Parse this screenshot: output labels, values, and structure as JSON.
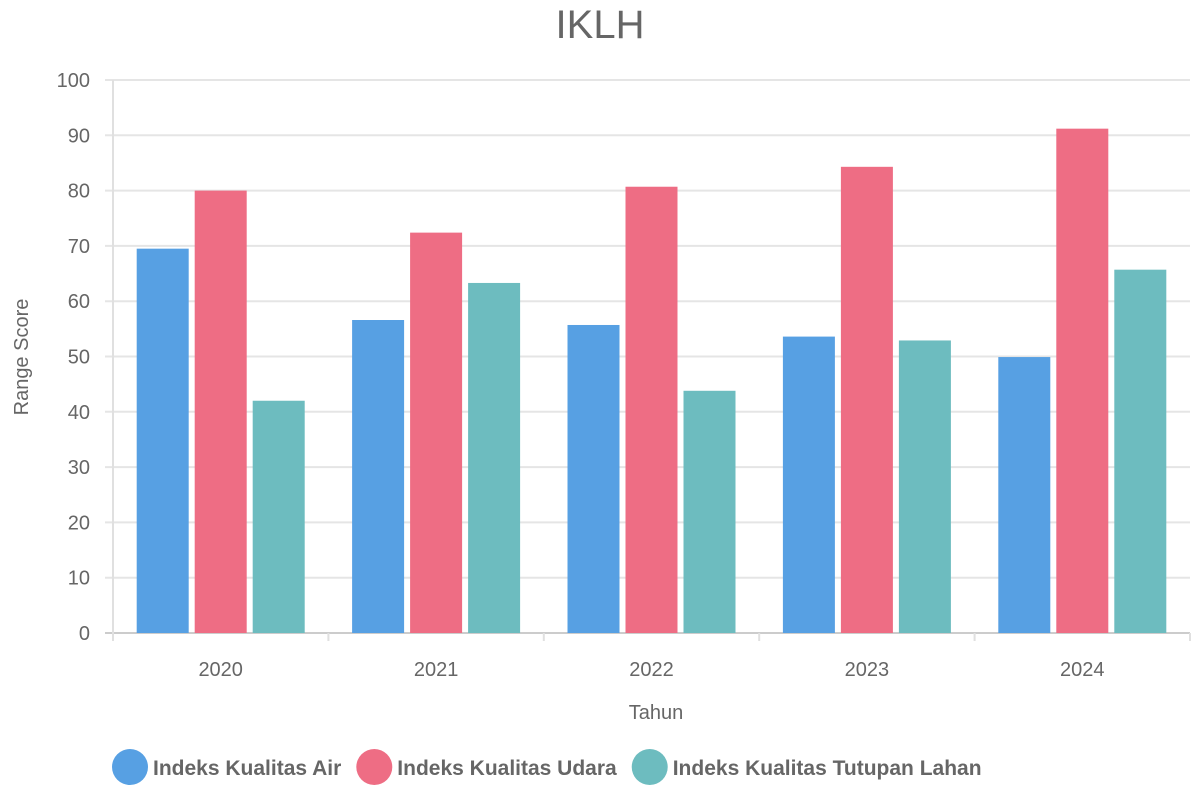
{
  "chart_data": {
    "type": "bar",
    "title": "IKLH",
    "xlabel": "Tahun",
    "ylabel": "Range Score",
    "ylim": [
      0,
      100
    ],
    "yticks": [
      0,
      10,
      20,
      30,
      40,
      50,
      60,
      70,
      80,
      90,
      100
    ],
    "grid": true,
    "legend_position": "bottom",
    "categories": [
      "2020",
      "2021",
      "2022",
      "2023",
      "2024"
    ],
    "series": [
      {
        "name": "Indeks Kualitas Air",
        "color": "#57a0e3",
        "values": [
          69.5,
          56.6,
          55.7,
          53.6,
          49.9
        ]
      },
      {
        "name": "Indeks Kualitas Udara",
        "color": "#ee6d84",
        "values": [
          80.0,
          72.4,
          80.7,
          84.3,
          91.2
        ]
      },
      {
        "name": "Indeks Kualitas Tutupan Lahan",
        "color": "#6dbcbf",
        "values": [
          42.0,
          63.3,
          43.8,
          52.9,
          65.7
        ]
      }
    ]
  }
}
